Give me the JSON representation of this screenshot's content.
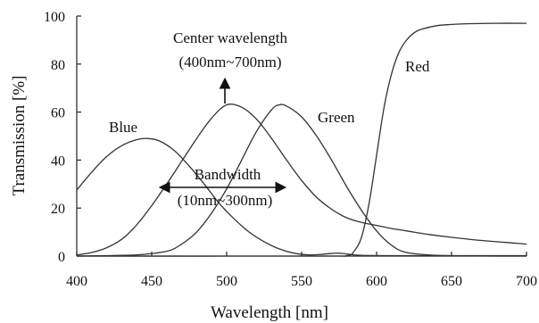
{
  "chart_data": {
    "type": "line",
    "xlabel": "Wavelength [nm]",
    "ylabel": "Transmission [%]",
    "xlim": [
      400,
      700
    ],
    "ylim": [
      0,
      100
    ],
    "xticks": [
      "400",
      "450",
      "500",
      "550",
      "600",
      "650",
      "700"
    ],
    "yticks": [
      "0",
      "20",
      "40",
      "60",
      "80",
      "100"
    ],
    "grid": false,
    "series": [
      {
        "name": "Blue",
        "x": [
          400,
          410,
          420,
          430,
          440,
          447,
          455,
          465,
          475,
          485,
          495,
          505,
          515,
          525,
          535,
          545,
          555,
          565,
          575,
          590,
          620,
          660,
          700
        ],
        "y": [
          27.5,
          35,
          41.5,
          46,
          48.5,
          49,
          48,
          44,
          37.5,
          30,
          22,
          15.5,
          10,
          6,
          3,
          1.2,
          0.5,
          0.8,
          1.2,
          0.3,
          0.2,
          0.2,
          0.2
        ]
      },
      {
        "name": "",
        "x": [
          400,
          410,
          420,
          430,
          440,
          450,
          460,
          470,
          480,
          490,
          500,
          510,
          520,
          530,
          540,
          550,
          560,
          570,
          580,
          590,
          600,
          610,
          620,
          635,
          650,
          670,
          690,
          700
        ],
        "y": [
          0.5,
          1.5,
          3.5,
          7,
          13,
          21,
          30,
          39.5,
          49,
          57.5,
          63,
          62,
          57,
          49,
          40,
          31.5,
          24.5,
          19.5,
          16,
          14,
          12.8,
          11.5,
          10.5,
          9,
          7.8,
          6.5,
          5.5,
          5
        ]
      },
      {
        "name": "Green",
        "x": [
          400,
          420,
          440,
          460,
          470,
          480,
          490,
          500,
          510,
          520,
          530,
          535,
          540,
          550,
          560,
          570,
          580,
          590,
          600,
          610,
          620,
          640,
          660,
          680,
          700
        ],
        "y": [
          0,
          0.2,
          0.5,
          2,
          5,
          10,
          18,
          28,
          40,
          52,
          61,
          63,
          62.5,
          58,
          50,
          40,
          29,
          19,
          10.5,
          4.5,
          1.5,
          0.3,
          0.1,
          0,
          0
        ]
      },
      {
        "name": "Red",
        "x": [
          400,
          560,
          580,
          585,
          590,
          595,
          600,
          605,
          610,
          615,
          620,
          625,
          630,
          640,
          650,
          660,
          680,
          700
        ],
        "y": [
          0,
          0,
          0.2,
          2,
          8,
          22,
          42,
          62,
          76,
          85,
          90,
          93,
          94.5,
          96,
          96.5,
          96.8,
          97,
          97
        ]
      }
    ],
    "annotations": {
      "blue": "Blue",
      "green": "Green",
      "red": "Red",
      "center_line1": "Center wavelength",
      "center_line2": "(400nm~700nm)",
      "bandwidth_line1": "Bandwidth",
      "bandwidth_line2": "(10nm~300nm)"
    }
  }
}
